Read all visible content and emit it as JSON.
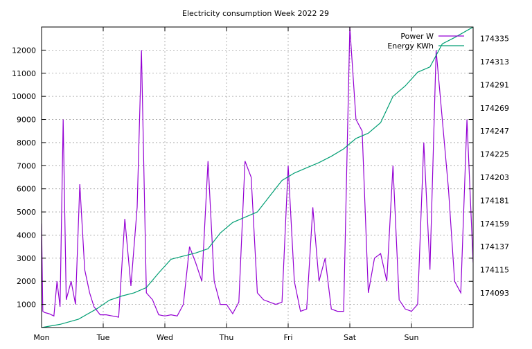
{
  "chart_data": {
    "type": "line",
    "title": "Electricity consumption Week 2022 29",
    "xlabel": "",
    "ylabel": "",
    "y2label": "",
    "categories": [
      "Mon",
      "Tue",
      "Wed",
      "Thu",
      "Fri",
      "Sat",
      "Sun"
    ],
    "xlim": [
      0,
      7
    ],
    "ylim": [
      0,
      13000
    ],
    "y_ticks": [
      1000,
      2000,
      3000,
      4000,
      5000,
      6000,
      7000,
      8000,
      9000,
      10000,
      11000,
      12000
    ],
    "y2lim": [
      174060,
      174346
    ],
    "y2_ticks": [
      174093,
      174115,
      174137,
      174159,
      174181,
      174203,
      174225,
      174247,
      174269,
      174291,
      174313,
      174335
    ],
    "grid": true,
    "legend_position": "top-right",
    "series": [
      {
        "name": "Power W",
        "axis": "left",
        "color": "#9400d3",
        "x": [
          0.0,
          0.02,
          0.05,
          0.12,
          0.2,
          0.25,
          0.3,
          0.35,
          0.4,
          0.48,
          0.55,
          0.62,
          0.7,
          0.78,
          0.85,
          0.95,
          1.05,
          1.15,
          1.25,
          1.35,
          1.45,
          1.55,
          1.62,
          1.7,
          1.8,
          1.9,
          2.0,
          2.1,
          2.2,
          2.3,
          2.4,
          2.5,
          2.6,
          2.7,
          2.8,
          2.9,
          3.0,
          3.1,
          3.2,
          3.3,
          3.4,
          3.5,
          3.6,
          3.7,
          3.8,
          3.9,
          4.0,
          4.1,
          4.2,
          4.3,
          4.4,
          4.5,
          4.6,
          4.7,
          4.8,
          4.9,
          5.0,
          5.1,
          5.2,
          5.3,
          5.4,
          5.5,
          5.6,
          5.7,
          5.8,
          5.9,
          6.0,
          6.1,
          6.2,
          6.3,
          6.4,
          6.5,
          6.6,
          6.7,
          6.8,
          6.9,
          7.0
        ],
        "values": [
          4500,
          700,
          650,
          600,
          500,
          2000,
          900,
          9000,
          1200,
          2000,
          1000,
          6200,
          2500,
          1500,
          900,
          550,
          550,
          500,
          450,
          4700,
          1800,
          5200,
          12000,
          1500,
          1200,
          550,
          500,
          550,
          500,
          1000,
          3500,
          2800,
          2000,
          7200,
          2000,
          1000,
          1000,
          600,
          1100,
          7200,
          6500,
          1500,
          1200,
          1100,
          1000,
          1100,
          7000,
          2000,
          700,
          800,
          5200,
          2000,
          3000,
          800,
          700,
          700,
          13000,
          9000,
          8500,
          1500,
          3000,
          3200,
          2000,
          7000,
          1200,
          800,
          700,
          1000,
          8000,
          2500,
          12000,
          9000,
          6000,
          2000,
          1500,
          9000,
          2800
        ]
      },
      {
        "name": "Energy KWh",
        "axis": "right",
        "color": "#009e73",
        "x": [
          0.0,
          0.3,
          0.6,
          0.9,
          1.1,
          1.3,
          1.5,
          1.7,
          1.9,
          2.1,
          2.3,
          2.5,
          2.7,
          2.9,
          3.1,
          3.3,
          3.5,
          3.7,
          3.9,
          4.1,
          4.3,
          4.5,
          4.7,
          4.9,
          5.1,
          5.3,
          5.5,
          5.7,
          5.9,
          6.1,
          6.3,
          6.5,
          6.7,
          7.0
        ],
        "values": [
          174060,
          174063,
          174068,
          174078,
          174086,
          174090,
          174093,
          174098,
          174112,
          174125,
          174128,
          174131,
          174135,
          174150,
          174160,
          174165,
          174170,
          174185,
          174200,
          174207,
          174212,
          174217,
          174223,
          174230,
          174240,
          174245,
          174255,
          174280,
          174290,
          174303,
          174308,
          174330,
          174336,
          174346
        ]
      }
    ]
  }
}
